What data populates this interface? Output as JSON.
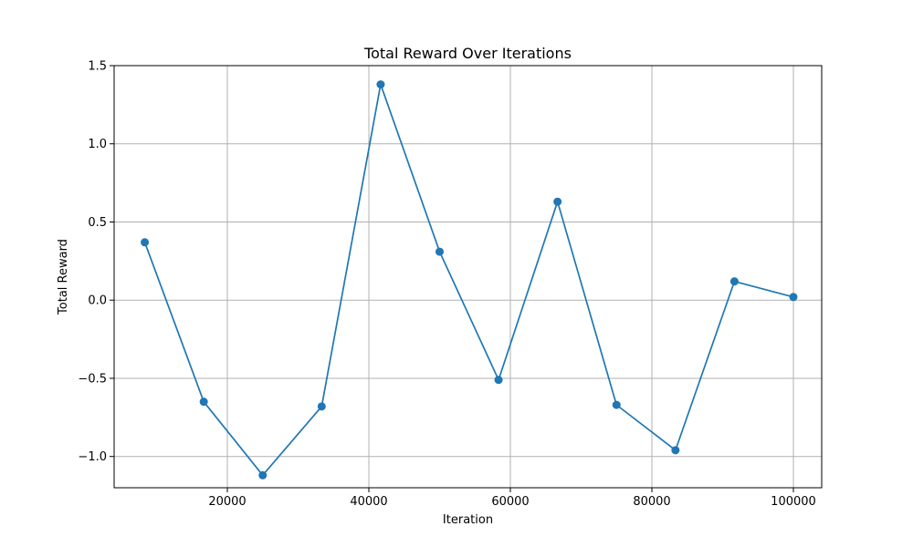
{
  "chart_data": {
    "type": "line",
    "title": "Total Reward Over Iterations",
    "xlabel": "Iteration",
    "ylabel": "Total Reward",
    "xlim": [
      4000,
      104000
    ],
    "ylim": [
      -1.2,
      1.5
    ],
    "x_ticks": [
      20000,
      40000,
      60000,
      80000,
      100000
    ],
    "x_tick_labels": [
      "20000",
      "40000",
      "60000",
      "80000",
      "100000"
    ],
    "y_ticks": [
      -1.0,
      -0.5,
      0.0,
      0.5,
      1.0,
      1.5
    ],
    "y_tick_labels": [
      "−1.0",
      "−0.5",
      "0.0",
      "0.5",
      "1.0",
      "1.5"
    ],
    "grid": true,
    "series": [
      {
        "color": "#1f77b4",
        "marker": "circle",
        "x": [
          8333,
          16667,
          25000,
          33333,
          41667,
          50000,
          58333,
          66667,
          75000,
          83333,
          91667,
          100000
        ],
        "y": [
          0.37,
          -0.65,
          -1.12,
          -0.68,
          1.38,
          0.31,
          -0.51,
          0.63,
          -0.67,
          -0.96,
          0.12,
          0.02
        ]
      }
    ]
  }
}
